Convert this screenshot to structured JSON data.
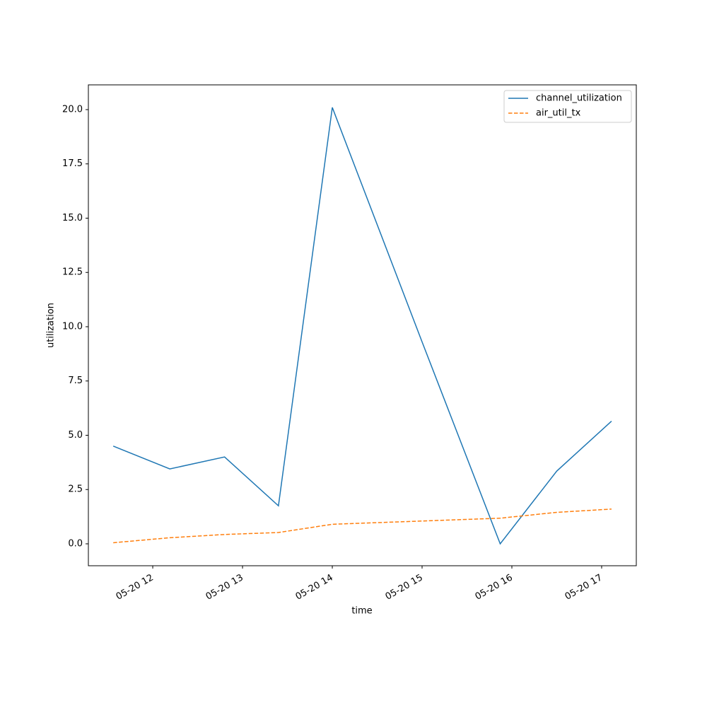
{
  "chart_data": {
    "type": "line",
    "x_label": "time",
    "y_label": "utilization",
    "x": [
      11.56,
      12.19,
      12.8,
      13.4,
      14.0,
      15.0,
      15.87,
      16.5,
      17.11
    ],
    "series": [
      {
        "name": "channel_utilization",
        "color": "#1f77b4",
        "linestyle": "solid",
        "values": [
          4.5,
          3.45,
          4.0,
          1.75,
          20.1,
          9.3,
          0.0,
          3.35,
          5.65
        ]
      },
      {
        "name": "air_util_tx",
        "color": "#ff7f0e",
        "linestyle": "dashed",
        "values": [
          0.05,
          0.28,
          0.43,
          0.52,
          0.9,
          1.05,
          1.18,
          1.45,
          1.6
        ]
      }
    ],
    "xlim": [
      11.283,
      17.386
    ],
    "xticks": [
      {
        "value": 12,
        "label": "05-20 12"
      },
      {
        "value": 13,
        "label": "05-20 13"
      },
      {
        "value": 14,
        "label": "05-20 14"
      },
      {
        "value": 15,
        "label": "05-20 15"
      },
      {
        "value": 16,
        "label": "05-20 16"
      },
      {
        "value": 17,
        "label": "05-20 17"
      }
    ],
    "ylim": [
      -1.01,
      21.14
    ],
    "yticks": [
      {
        "value": 0,
        "label": "0.0"
      },
      2.5,
      {
        "value": 5,
        "label": "5.0"
      },
      7.5,
      {
        "value": 10,
        "label": "10.0"
      },
      12.5,
      {
        "value": 15,
        "label": "15.0"
      },
      17.5,
      {
        "value": 20,
        "label": "20.0"
      }
    ],
    "legend": "upper right"
  }
}
